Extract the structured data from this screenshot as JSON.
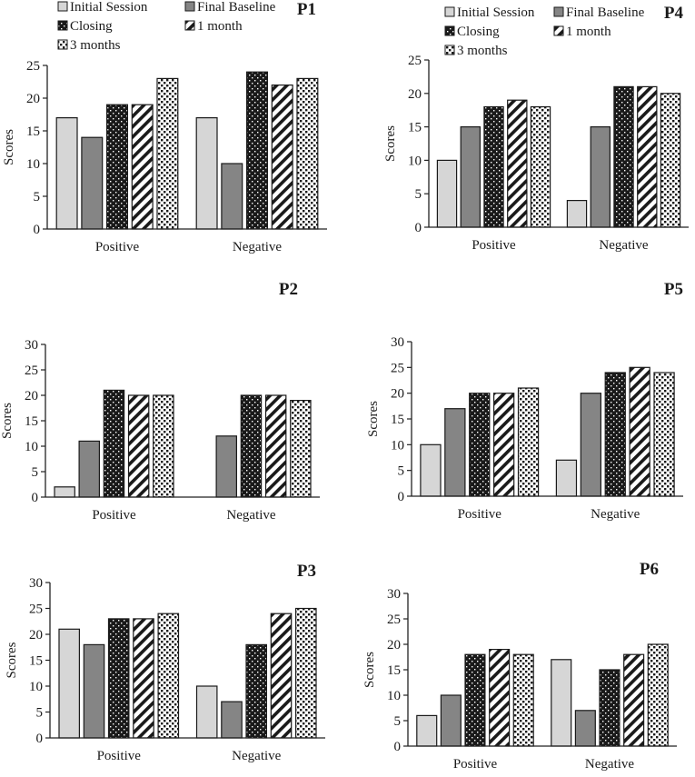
{
  "figure": {
    "series_labels": [
      "Initial Session",
      "Final Baseline",
      "Closing",
      "1 month",
      "3 months"
    ],
    "series_styles": [
      "light-gray-solid",
      "dark-gray-solid",
      "black-white-dots",
      "white-black-diagonal-stripes",
      "white-black-checker-dots"
    ],
    "colors": {
      "light_gray": "#d6d6d6",
      "dark_gray": "#858585",
      "black": "#1a1a1a",
      "axis": "#222222"
    }
  },
  "chart_data": [
    {
      "type": "bar",
      "title": "P1",
      "xlabel": "",
      "ylabel": "Scores",
      "categories": [
        "Positive",
        "Negative"
      ],
      "ylim": [
        0,
        25
      ],
      "yticks": [
        0,
        5,
        10,
        15,
        20,
        25
      ],
      "legend": "top",
      "grid": false,
      "series": [
        {
          "name": "Initial Session",
          "values": [
            17,
            17
          ]
        },
        {
          "name": "Final Baseline",
          "values": [
            14,
            10
          ]
        },
        {
          "name": "Closing",
          "values": [
            19,
            24
          ]
        },
        {
          "name": "1 month",
          "values": [
            19,
            22
          ]
        },
        {
          "name": "3 months",
          "values": [
            23,
            23
          ]
        }
      ]
    },
    {
      "type": "bar",
      "title": "P4",
      "xlabel": "",
      "ylabel": "Scores",
      "categories": [
        "Positive",
        "Negative"
      ],
      "ylim": [
        0,
        25
      ],
      "yticks": [
        0,
        5,
        10,
        15,
        20,
        25
      ],
      "legend": "top",
      "grid": false,
      "series": [
        {
          "name": "Initial Session",
          "values": [
            10,
            4
          ]
        },
        {
          "name": "Final Baseline",
          "values": [
            15,
            15
          ]
        },
        {
          "name": "Closing",
          "values": [
            18,
            21
          ]
        },
        {
          "name": "1 month",
          "values": [
            19,
            21
          ]
        },
        {
          "name": "3 months",
          "values": [
            18,
            20
          ]
        }
      ]
    },
    {
      "type": "bar",
      "title": "P2",
      "xlabel": "",
      "ylabel": "Scores",
      "categories": [
        "Positive",
        "Negative"
      ],
      "ylim": [
        0,
        30
      ],
      "yticks": [
        0,
        5,
        10,
        15,
        20,
        25,
        30
      ],
      "legend": "none",
      "grid": false,
      "series": [
        {
          "name": "Initial Session",
          "values": [
            2,
            0
          ]
        },
        {
          "name": "Final Baseline",
          "values": [
            11,
            12
          ]
        },
        {
          "name": "Closing",
          "values": [
            21,
            20
          ]
        },
        {
          "name": "1 month",
          "values": [
            20,
            20
          ]
        },
        {
          "name": "3 months",
          "values": [
            20,
            19
          ]
        }
      ]
    },
    {
      "type": "bar",
      "title": "P5",
      "xlabel": "",
      "ylabel": "Scores",
      "categories": [
        "Positive",
        "Negative"
      ],
      "ylim": [
        0,
        30
      ],
      "yticks": [
        0,
        5,
        10,
        15,
        20,
        25,
        30
      ],
      "legend": "none",
      "grid": false,
      "series": [
        {
          "name": "Initial Session",
          "values": [
            10,
            7
          ]
        },
        {
          "name": "Final Baseline",
          "values": [
            17,
            20
          ]
        },
        {
          "name": "Closing",
          "values": [
            20,
            24
          ]
        },
        {
          "name": "1 month",
          "values": [
            20,
            25
          ]
        },
        {
          "name": "3 months",
          "values": [
            21,
            24
          ]
        }
      ]
    },
    {
      "type": "bar",
      "title": "P3",
      "xlabel": "",
      "ylabel": "Scores",
      "categories": [
        "Positive",
        "Negative"
      ],
      "ylim": [
        0,
        30
      ],
      "yticks": [
        0,
        5,
        10,
        15,
        20,
        25,
        30
      ],
      "legend": "none",
      "grid": false,
      "series": [
        {
          "name": "Initial Session",
          "values": [
            21,
            10
          ]
        },
        {
          "name": "Final Baseline",
          "values": [
            18,
            7
          ]
        },
        {
          "name": "Closing",
          "values": [
            23,
            18
          ]
        },
        {
          "name": "1 month",
          "values": [
            23,
            24
          ]
        },
        {
          "name": "3 months",
          "values": [
            24,
            25
          ]
        }
      ]
    },
    {
      "type": "bar",
      "title": "P6",
      "xlabel": "",
      "ylabel": "Scores",
      "categories": [
        "Positive",
        "Negative"
      ],
      "ylim": [
        0,
        30
      ],
      "yticks": [
        0,
        5,
        10,
        15,
        20,
        25,
        30
      ],
      "legend": "none",
      "grid": false,
      "series": [
        {
          "name": "Initial Session",
          "values": [
            6,
            17
          ]
        },
        {
          "name": "Final Baseline",
          "values": [
            10,
            7
          ]
        },
        {
          "name": "Closing",
          "values": [
            18,
            15
          ]
        },
        {
          "name": "1 month",
          "values": [
            19,
            18
          ]
        },
        {
          "name": "3 months",
          "values": [
            18,
            20
          ]
        }
      ]
    }
  ]
}
